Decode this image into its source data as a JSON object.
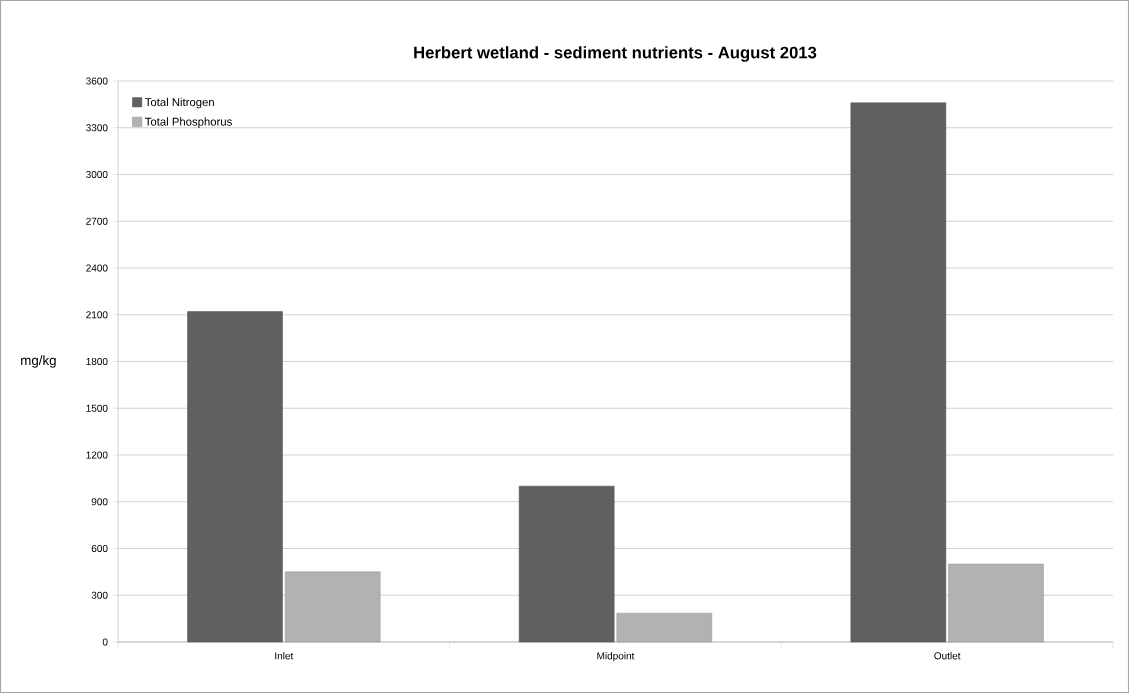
{
  "chart_data": {
    "type": "bar",
    "title": "Herbert wetland - sediment nutrients - August 2013",
    "ylabel": "mg/kg",
    "categories": [
      "Inlet",
      "Midpoint",
      "Outlet"
    ],
    "series": [
      {
        "name": "Total Nitrogen",
        "color": "#606060",
        "values": [
          2120,
          1000,
          3460
        ]
      },
      {
        "name": "Total Phosphorus",
        "color": "#b2b2b2",
        "values": [
          450,
          185,
          500
        ]
      }
    ],
    "ylim": [
      0,
      3600
    ],
    "yticks": [
      0,
      300,
      600,
      900,
      1200,
      1500,
      1800,
      2100,
      2400,
      2700,
      3000,
      3300,
      3600
    ],
    "grid": "y",
    "legend": "top left"
  }
}
